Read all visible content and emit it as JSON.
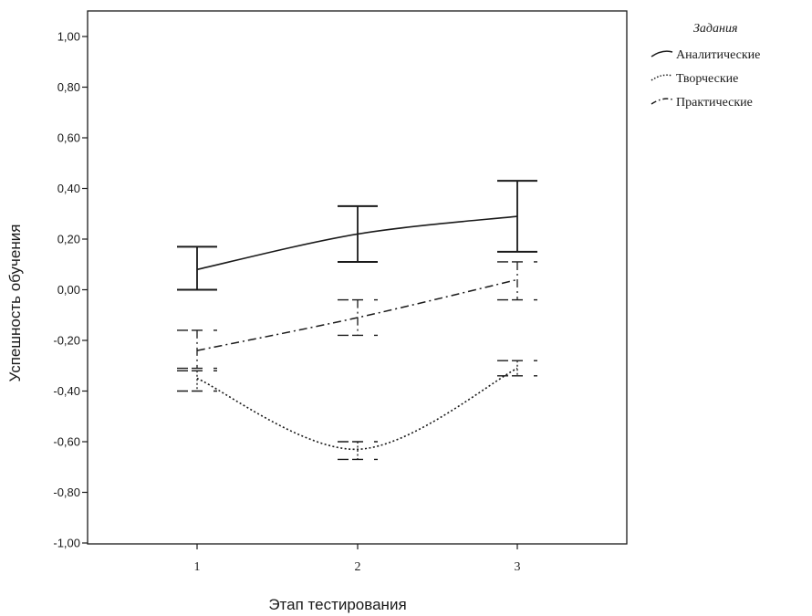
{
  "chart_data": {
    "type": "line",
    "xlabel": "Этап тестирования",
    "ylabel": "Успешность обучения",
    "categories": [
      "1",
      "2",
      "3"
    ],
    "ylim": [
      -1.0,
      1.0
    ],
    "yticks": [
      "1,00",
      "0,80",
      "0,60",
      "0,40",
      "0,20",
      "0,00",
      "-0,20",
      "-0,40",
      "-0,60",
      "-0,80",
      "-1,00"
    ],
    "ytick_values": [
      1.0,
      0.8,
      0.6,
      0.4,
      0.2,
      0.0,
      -0.2,
      -0.4,
      -0.6,
      -0.8,
      -1.0
    ],
    "grid": false,
    "legend": {
      "title": "Задания",
      "placement": "right"
    },
    "series": [
      {
        "name": "Аналитические",
        "style": "solid",
        "color": "#1a1a1a",
        "values": [
          0.08,
          0.22,
          0.29
        ],
        "ci_upper": [
          0.17,
          0.33,
          0.43
        ],
        "ci_lower": [
          0.0,
          0.11,
          0.15
        ]
      },
      {
        "name": "Творческие",
        "style": "dotted",
        "color": "#1a1a1a",
        "values": [
          -0.35,
          -0.63,
          -0.31
        ],
        "ci_upper": [
          -0.32,
          -0.6,
          -0.28
        ],
        "ci_lower": [
          -0.4,
          -0.67,
          -0.34
        ]
      },
      {
        "name": "Практические",
        "style": "dashdot",
        "color": "#1a1a1a",
        "values": [
          -0.24,
          -0.11,
          0.04
        ],
        "ci_upper": [
          -0.16,
          -0.04,
          0.11
        ],
        "ci_lower": [
          -0.31,
          -0.18,
          -0.04
        ]
      }
    ]
  }
}
